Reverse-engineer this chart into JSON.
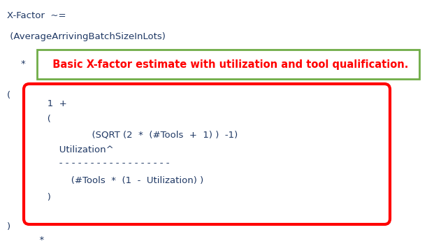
{
  "bg_color": "#ffffff",
  "text_color_dark": "#1f3864",
  "text_color_red": "#ff0000",
  "line1": "X-Factor  ~=",
  "line2": " (AverageArrivingBatchSizeInLots)",
  "highlight_text": "  Basic X-factor estimate with utilization and tool qualification.",
  "green_box_color": "#70ad47",
  "red_box_color": "#ff0000",
  "star": "*",
  "open_paren": "(",
  "formula_line1": "   1  +",
  "formula_line2": "   (",
  "formula_line3": "                  (SQRT (2  *  (#Tools  +  1) )  -1)",
  "formula_line4": "       Utilization^",
  "formula_dashes": "       - - - - - - - - - - - - - - - - - -",
  "formula_line5": "           (#Tools  *  (1  -  Utilization) )",
  "formula_close": "   )",
  "close_paren_bottom": ")",
  "star_bottom": "  *"
}
